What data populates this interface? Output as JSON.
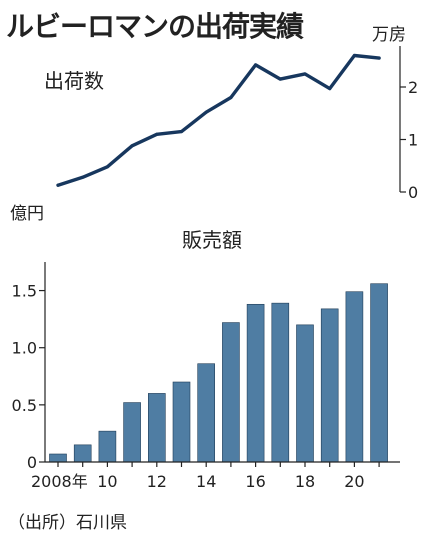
{
  "title": "ルビーロマンの出荷実績",
  "source": "（出所）石川県",
  "colors": {
    "line": "#17375e",
    "bar": "#4f7da3",
    "bar_stroke": "#1f3b55",
    "axis": "#222222"
  },
  "chart_data": [
    {
      "type": "line",
      "title": "出荷数",
      "unit_label": "万房",
      "x": [
        2008,
        2009,
        2010,
        2011,
        2012,
        2013,
        2014,
        2015,
        2016,
        2017,
        2018,
        2019,
        2020,
        2021
      ],
      "values": [
        0.13,
        0.28,
        0.48,
        0.88,
        1.1,
        1.15,
        1.52,
        1.8,
        2.42,
        2.15,
        2.25,
        1.97,
        2.6,
        2.55
      ],
      "ylim": [
        0,
        2.8
      ],
      "yticks": [
        0,
        1,
        2
      ],
      "ytick_labels": [
        "0",
        "1",
        "2"
      ]
    },
    {
      "type": "bar",
      "title": "販売額",
      "unit_label": "億円",
      "x": [
        2008,
        2009,
        2010,
        2011,
        2012,
        2013,
        2014,
        2015,
        2016,
        2017,
        2018,
        2019,
        2020,
        2021
      ],
      "values": [
        0.07,
        0.15,
        0.27,
        0.52,
        0.6,
        0.7,
        0.86,
        1.22,
        1.38,
        1.39,
        1.2,
        1.34,
        1.49,
        1.56
      ],
      "ylim": [
        0,
        1.75
      ],
      "yticks": [
        0,
        0.5,
        1.0,
        1.5
      ],
      "ytick_labels": [
        "0",
        "0.5",
        "1.0",
        "1.5"
      ],
      "xtick_labels": [
        "2008年",
        "10",
        "12",
        "14",
        "16",
        "18",
        "20"
      ],
      "xtick_years": [
        2008,
        2010,
        2012,
        2014,
        2016,
        2018,
        2020
      ]
    }
  ]
}
